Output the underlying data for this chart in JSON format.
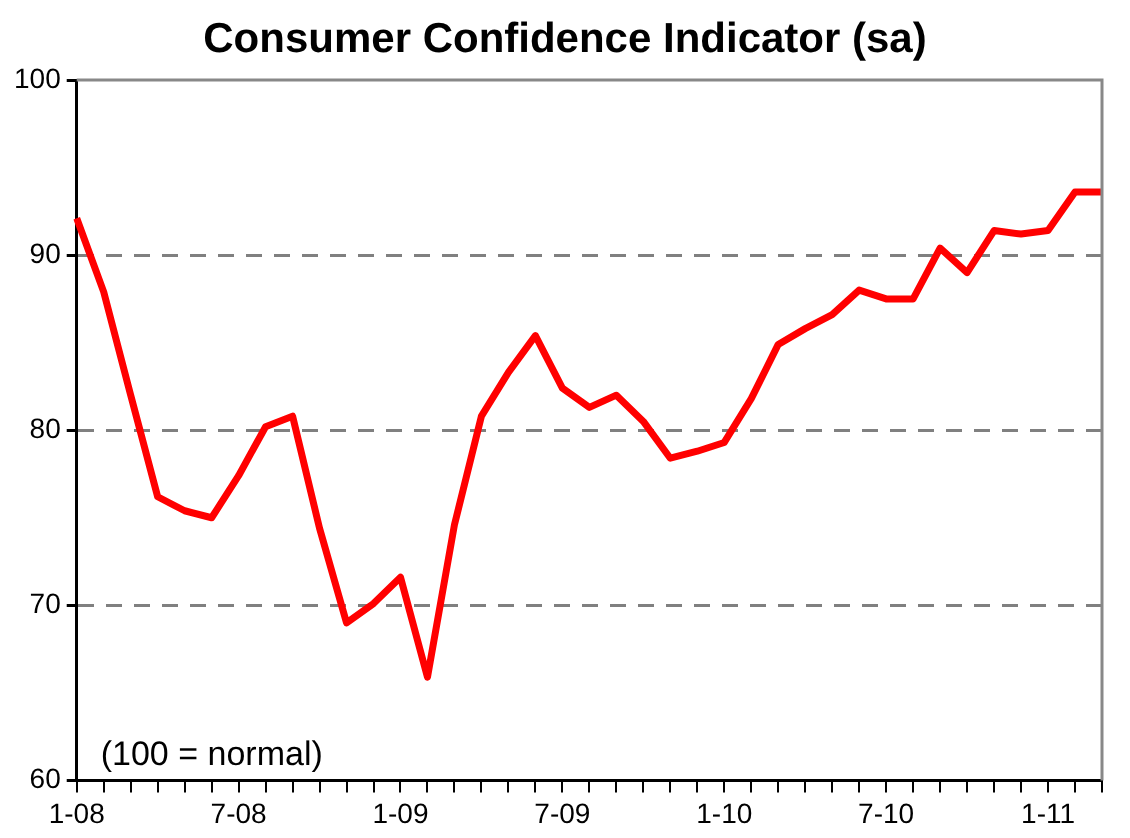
{
  "chart_data": {
    "type": "line",
    "title": "Consumer Confidence Indicator (sa)",
    "categories": [
      "1-08",
      null,
      null,
      null,
      null,
      null,
      "7-08",
      null,
      null,
      null,
      null,
      null,
      "1-09",
      null,
      null,
      null,
      null,
      null,
      "7-09",
      null,
      null,
      null,
      null,
      null,
      "1-10",
      null,
      null,
      null,
      null,
      null,
      "7-10",
      null,
      null,
      null,
      null,
      null,
      "1-11",
      null,
      null
    ],
    "series": [
      {
        "color": "#ff0000",
        "values": [
          92.1,
          87.9,
          82.0,
          76.2,
          75.4,
          75.0,
          77.4,
          80.2,
          80.8,
          74.4,
          69.0,
          70.1,
          71.6,
          65.9,
          74.6,
          80.8,
          83.3,
          85.4,
          82.4,
          81.3,
          82.0,
          80.5,
          78.4,
          78.8,
          79.3,
          81.8,
          84.9,
          85.8,
          86.6,
          88.0,
          87.5,
          87.5,
          90.4,
          89.0,
          91.4,
          91.2,
          91.4,
          93.6,
          93.6
        ]
      }
    ],
    "ylim": [
      60,
      100
    ],
    "yticks": [
      60,
      70,
      80,
      90,
      100
    ],
    "grid": "y",
    "legend": false,
    "marker": "none",
    "line_style": "solid",
    "annotations": [
      "(100 = normal)"
    ]
  }
}
